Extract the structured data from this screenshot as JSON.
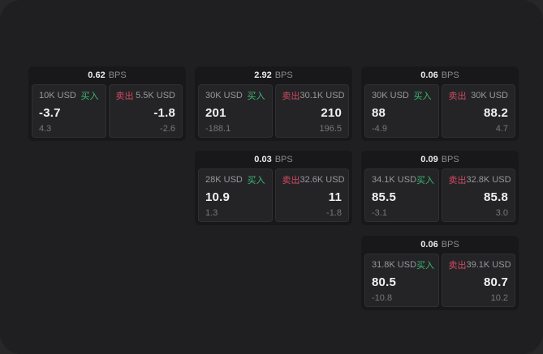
{
  "labels": {
    "buy": "买入",
    "sell": "卖出",
    "bps": "BPS"
  },
  "colors": {
    "buy_green": "#3cb870",
    "sell_red": "#d0495f",
    "page_background": "#1f1f21",
    "card_background": "#18181a",
    "tile_background": "#242427"
  },
  "cards": [
    {
      "bps": "0.62",
      "left": {
        "size": "10K USD",
        "price": "-3.7",
        "delta": "4.3"
      },
      "right": {
        "size": "5.5K USD",
        "price": "-1.8",
        "delta": "-2.6"
      }
    },
    {
      "bps": "2.92",
      "left": {
        "size": "30K USD",
        "price": "201",
        "delta": "-188.1"
      },
      "right": {
        "size": "30.1K USD",
        "price": "210",
        "delta": "196.5"
      }
    },
    {
      "bps": "0.06",
      "left": {
        "size": "30K USD",
        "price": "88",
        "delta": "-4.9"
      },
      "right": {
        "size": "30K USD",
        "price": "88.2",
        "delta": "4.7"
      }
    },
    {
      "bps": "0.03",
      "left": {
        "size": "28K USD",
        "price": "10.9",
        "delta": "1.3"
      },
      "right": {
        "size": "32.6K USD",
        "price": "11",
        "delta": "-1.8"
      }
    },
    {
      "bps": "0.09",
      "left": {
        "size": "34.1K USD",
        "price": "85.5",
        "delta": "-3.1"
      },
      "right": {
        "size": "32.8K USD",
        "price": "85.8",
        "delta": "3.0"
      }
    },
    {
      "bps": "0.06",
      "left": {
        "size": "31.8K USD",
        "price": "80.5",
        "delta": "-10.8"
      },
      "right": {
        "size": "39.1K USD",
        "price": "80.7",
        "delta": "10.2"
      }
    }
  ]
}
